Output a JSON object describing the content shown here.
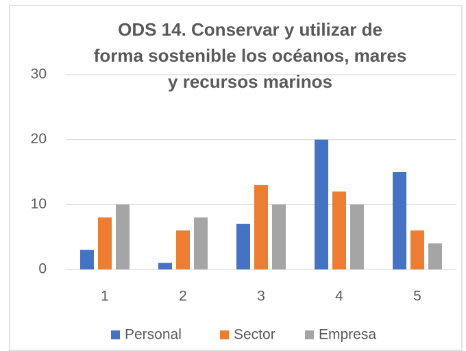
{
  "chart_data": {
    "type": "bar",
    "title": [
      "ODS 14. Conservar y utilizar de",
      "forma sostenible los océanos, mares",
      "y recursos marinos"
    ],
    "categories": [
      "1",
      "2",
      "3",
      "4",
      "5"
    ],
    "series": [
      {
        "name": "Personal",
        "color": "#4472c4",
        "values": [
          3,
          1,
          7,
          20,
          15
        ]
      },
      {
        "name": "Sector",
        "color": "#ed7d31",
        "values": [
          8,
          6,
          13,
          12,
          6
        ]
      },
      {
        "name": "Empresa",
        "color": "#a5a5a5",
        "values": [
          10,
          8,
          10,
          10,
          4
        ]
      }
    ],
    "ylim": [
      0,
      30
    ],
    "yticks": [
      0,
      10,
      20,
      30
    ],
    "grid": true,
    "legend": "bottom"
  }
}
